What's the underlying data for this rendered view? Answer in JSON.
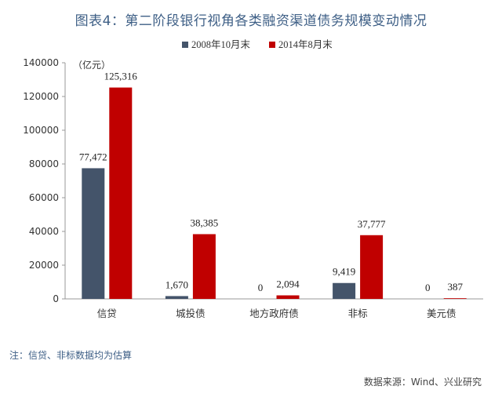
{
  "title": "图表4：第二阶段银行视角各类融资渠道债务规模变动情况",
  "footnote": "注：信贷、非标数据均为估算",
  "source": "数据来源：Wind、兴业研究",
  "chart_data": {
    "type": "bar",
    "unit": "（亿元）",
    "categories": [
      "信贷",
      "城投债",
      "地方政府债",
      "非标",
      "美元债"
    ],
    "series": [
      {
        "name": "2008年10月末",
        "color": "#44546a",
        "values": [
          77472,
          1670,
          0,
          9419,
          0
        ],
        "labels": [
          "77,472",
          "1,670",
          "0",
          "9,419",
          "0"
        ]
      },
      {
        "name": "2014年8月末",
        "color": "#c00000",
        "values": [
          125316,
          38385,
          2094,
          37777,
          387
        ],
        "labels": [
          "125,316",
          "38,385",
          "2,094",
          "37,777",
          "387"
        ]
      }
    ],
    "yticks": [
      "0",
      "20000",
      "40000",
      "60000",
      "80000",
      "100000",
      "120000",
      "140000"
    ],
    "ylim": [
      0,
      140000
    ],
    "legend": "top-center",
    "grid": false
  }
}
